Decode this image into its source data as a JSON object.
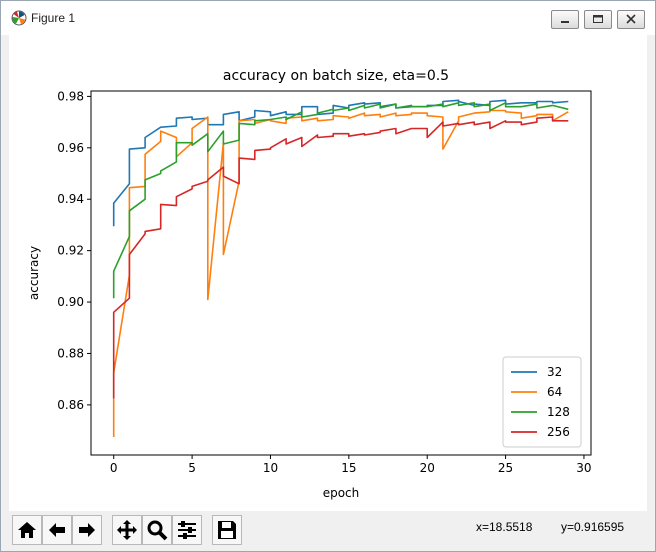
{
  "window": {
    "title": "Figure 1",
    "icons": {
      "app": "matplotlib-logo-icon",
      "minimize": "minimize-icon",
      "maximize": "maximize-icon",
      "close": "close-icon"
    }
  },
  "toolbar": {
    "buttons": [
      {
        "name": "home-button",
        "icon": "home-icon"
      },
      {
        "name": "back-button",
        "icon": "arrow-left-icon"
      },
      {
        "name": "forward-button",
        "icon": "arrow-right-icon"
      },
      {
        "name": "pan-button",
        "icon": "move-icon"
      },
      {
        "name": "zoom-button",
        "icon": "zoom-icon"
      },
      {
        "name": "configure-subplots-button",
        "icon": "sliders-icon"
      },
      {
        "name": "save-button",
        "icon": "floppy-disk-icon"
      }
    ],
    "coord_x": "x=18.5518",
    "coord_y": "y=0.916595"
  },
  "chart_data": {
    "type": "line",
    "title": "accuracy on batch size, eta=0.5",
    "xlabel": "epoch",
    "ylabel": "accuracy",
    "xlim": [
      -1.45,
      30.45
    ],
    "ylim": [
      0.8405,
      0.9821
    ],
    "xticks": [
      0,
      5,
      10,
      15,
      20,
      25,
      30
    ],
    "yticks": [
      0.86,
      0.88,
      0.9,
      0.92,
      0.94,
      0.96,
      0.98
    ],
    "xtick_labels": [
      "0",
      "5",
      "10",
      "15",
      "20",
      "25",
      "30"
    ],
    "ytick_labels": [
      "0.86",
      "0.88",
      "0.90",
      "0.92",
      "0.94",
      "0.96",
      "0.98"
    ],
    "grid": false,
    "legend_position": "lower-right",
    "series": [
      {
        "name": "32",
        "color": "#1f77b4",
        "x": [
          0,
          0,
          1,
          1,
          2,
          2,
          3,
          3,
          4,
          4,
          5,
          5,
          6,
          6,
          7,
          7,
          8,
          8,
          9,
          9,
          10,
          10,
          11,
          11,
          12,
          12,
          13,
          13,
          14,
          14,
          15,
          15,
          16,
          16,
          17,
          17,
          18,
          18,
          19,
          19,
          20,
          20,
          21,
          21,
          22,
          22,
          23,
          23,
          24,
          24,
          25,
          25,
          26,
          26,
          27,
          27,
          28,
          28,
          29
        ],
        "y": [
          0.9295,
          0.9385,
          0.946,
          0.9595,
          0.96,
          0.964,
          0.968,
          0.968,
          0.9685,
          0.9715,
          0.972,
          0.971,
          0.9715,
          0.969,
          0.969,
          0.973,
          0.974,
          0.9705,
          0.972,
          0.9745,
          0.974,
          0.9725,
          0.974,
          0.973,
          0.973,
          0.976,
          0.976,
          0.973,
          0.9735,
          0.9765,
          0.9755,
          0.9765,
          0.9775,
          0.977,
          0.9775,
          0.976,
          0.977,
          0.9755,
          0.976,
          0.976,
          0.976,
          0.9765,
          0.9765,
          0.978,
          0.9785,
          0.978,
          0.9765,
          0.977,
          0.9765,
          0.978,
          0.9785,
          0.977,
          0.9775,
          0.9775,
          0.9775,
          0.978,
          0.978,
          0.9775,
          0.978
        ]
      },
      {
        "name": "64",
        "color": "#ff7f0e",
        "x": [
          0,
          0,
          1,
          1,
          2,
          2,
          3,
          3,
          4,
          4,
          5,
          5,
          6,
          6,
          7,
          7,
          8,
          8,
          9,
          9,
          10,
          10,
          11,
          11,
          12,
          12,
          13,
          13,
          14,
          14,
          15,
          15,
          16,
          16,
          17,
          17,
          18,
          18,
          19,
          19,
          20,
          20,
          21,
          21,
          22,
          22,
          23,
          23,
          24,
          24,
          25,
          25,
          26,
          26,
          27,
          27,
          28,
          28,
          29
        ],
        "y": [
          0.8475,
          0.8725,
          0.9105,
          0.9445,
          0.945,
          0.9575,
          0.9625,
          0.9665,
          0.964,
          0.9565,
          0.962,
          0.9675,
          0.972,
          0.901,
          0.962,
          0.9185,
          0.947,
          0.9705,
          0.971,
          0.9695,
          0.971,
          0.9705,
          0.9695,
          0.9715,
          0.972,
          0.9705,
          0.9715,
          0.9705,
          0.971,
          0.9725,
          0.972,
          0.9715,
          0.9735,
          0.9725,
          0.973,
          0.972,
          0.9735,
          0.9725,
          0.973,
          0.9735,
          0.9735,
          0.9725,
          0.972,
          0.9595,
          0.9705,
          0.972,
          0.9735,
          0.9735,
          0.974,
          0.9745,
          0.9745,
          0.974,
          0.9735,
          0.9715,
          0.9725,
          0.973,
          0.973,
          0.9705,
          0.974
        ]
      },
      {
        "name": "128",
        "color": "#2ca02c",
        "x": [
          0,
          0,
          1,
          1,
          2,
          2,
          3,
          3,
          4,
          4,
          5,
          5,
          6,
          6,
          7,
          7,
          8,
          8,
          9,
          9,
          10,
          10,
          11,
          11,
          12,
          12,
          13,
          13,
          14,
          14,
          15,
          15,
          16,
          16,
          17,
          17,
          18,
          18,
          19,
          19,
          20,
          20,
          21,
          21,
          22,
          22,
          23,
          23,
          24,
          24,
          25,
          25,
          26,
          26,
          27,
          27,
          28,
          28,
          29
        ],
        "y": [
          0.9015,
          0.912,
          0.9255,
          0.9355,
          0.94,
          0.9475,
          0.95,
          0.951,
          0.9545,
          0.962,
          0.962,
          0.961,
          0.9655,
          0.9585,
          0.9665,
          0.9615,
          0.963,
          0.9695,
          0.969,
          0.9705,
          0.971,
          0.971,
          0.972,
          0.971,
          0.974,
          0.972,
          0.973,
          0.9735,
          0.975,
          0.9745,
          0.9755,
          0.9745,
          0.9765,
          0.9755,
          0.977,
          0.9755,
          0.977,
          0.9755,
          0.9765,
          0.976,
          0.976,
          0.976,
          0.977,
          0.976,
          0.9775,
          0.9765,
          0.9775,
          0.976,
          0.977,
          0.9745,
          0.9775,
          0.976,
          0.976,
          0.976,
          0.977,
          0.9755,
          0.9765,
          0.9765,
          0.975
        ]
      },
      {
        "name": "256",
        "color": "#d62728",
        "x": [
          0,
          0,
          1,
          1,
          2,
          2,
          3,
          3,
          4,
          4,
          5,
          5,
          6,
          6,
          7,
          7,
          8,
          8,
          9,
          9,
          10,
          10,
          11,
          11,
          12,
          12,
          13,
          13,
          14,
          14,
          15,
          15,
          16,
          16,
          17,
          17,
          18,
          18,
          19,
          19,
          20,
          20,
          21,
          21,
          22,
          22,
          23,
          23,
          24,
          24,
          25,
          25,
          26,
          26,
          27,
          27,
          28,
          28,
          29
        ],
        "y": [
          0.8625,
          0.896,
          0.9015,
          0.9185,
          0.9265,
          0.9275,
          0.9285,
          0.938,
          0.9375,
          0.941,
          0.944,
          0.945,
          0.947,
          0.9475,
          0.9525,
          0.949,
          0.946,
          0.956,
          0.9555,
          0.959,
          0.9595,
          0.96,
          0.9635,
          0.9615,
          0.964,
          0.9605,
          0.965,
          0.964,
          0.9645,
          0.9655,
          0.9655,
          0.9645,
          0.9655,
          0.965,
          0.966,
          0.9665,
          0.9675,
          0.9655,
          0.9675,
          0.9675,
          0.9675,
          0.964,
          0.97,
          0.9685,
          0.9695,
          0.969,
          0.97,
          0.969,
          0.97,
          0.9675,
          0.9705,
          0.97,
          0.97,
          0.969,
          0.97,
          0.9715,
          0.972,
          0.9705,
          0.9705
        ]
      }
    ]
  }
}
